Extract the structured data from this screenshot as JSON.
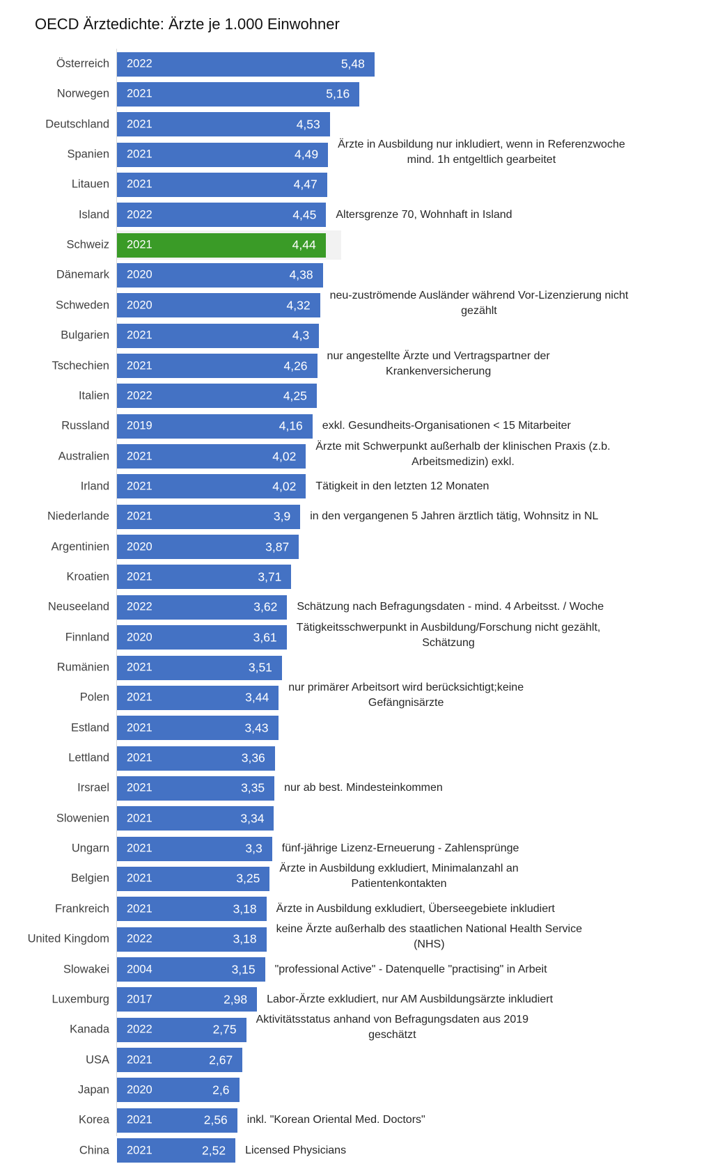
{
  "chart_data": {
    "type": "bar",
    "orientation": "horizontal",
    "title": "OECD Ärztedichte: Ärzte je 1.000 Einwohner",
    "xlim": [
      0,
      5.48
    ],
    "grid": false,
    "colors": {
      "default": "#4472C4",
      "highlight": "#3A9B27",
      "highlight_background": "#F2F2F2"
    },
    "highlight": "Schweiz",
    "rows": [
      {
        "country": "Österreich",
        "year": "2022",
        "value": 5.48,
        "label": "5,48",
        "note": ""
      },
      {
        "country": "Norwegen",
        "year": "2021",
        "value": 5.16,
        "label": "5,16",
        "note": ""
      },
      {
        "country": "Deutschland",
        "year": "2021",
        "value": 4.53,
        "label": "4,53",
        "note": ""
      },
      {
        "country": "Spanien",
        "year": "2021",
        "value": 4.49,
        "label": "4,49",
        "note": "Ärzte in Ausbildung nur inkludiert, wenn in Referenzwoche\nmind. 1h entgeltlich gearbeitet"
      },
      {
        "country": "Litauen",
        "year": "2021",
        "value": 4.47,
        "label": "4,47",
        "note": ""
      },
      {
        "country": "Island",
        "year": "2022",
        "value": 4.45,
        "label": "4,45",
        "note": "Altersgrenze 70, Wohnhaft in Island"
      },
      {
        "country": "Schweiz",
        "year": "2021",
        "value": 4.44,
        "label": "4,44",
        "note": ""
      },
      {
        "country": "Dänemark",
        "year": "2020",
        "value": 4.38,
        "label": "4,38",
        "note": ""
      },
      {
        "country": "Schweden",
        "year": "2020",
        "value": 4.32,
        "label": "4,32",
        "note": "neu-zuströmende Ausländer während Vor-Lizenzierung nicht\ngezählt"
      },
      {
        "country": "Bulgarien",
        "year": "2021",
        "value": 4.3,
        "label": "4,3",
        "note": ""
      },
      {
        "country": "Tschechien",
        "year": "2021",
        "value": 4.26,
        "label": "4,26",
        "note": "nur angestellte Ärzte und Vertragspartner der\nKrankenversicherung"
      },
      {
        "country": "Italien",
        "year": "2022",
        "value": 4.25,
        "label": "4,25",
        "note": ""
      },
      {
        "country": "Russland",
        "year": "2019",
        "value": 4.16,
        "label": "4,16",
        "note": "exkl. Gesundheits-Organisationen < 15 Mitarbeiter"
      },
      {
        "country": "Australien",
        "year": "2021",
        "value": 4.02,
        "label": "4,02",
        "note": "Ärzte mit Schwerpunkt außerhalb der klinischen Praxis (z.b.\nArbeitsmedizin) exkl."
      },
      {
        "country": "Irland",
        "year": "2021",
        "value": 4.02,
        "label": "4,02",
        "note": "Tätigkeit in den letzten 12 Monaten"
      },
      {
        "country": "Niederlande",
        "year": "2021",
        "value": 3.9,
        "label": "3,9",
        "note": "in den vergangenen 5 Jahren ärztlich tätig, Wohnsitz in NL"
      },
      {
        "country": "Argentinien",
        "year": "2020",
        "value": 3.87,
        "label": "3,87",
        "note": ""
      },
      {
        "country": "Kroatien",
        "year": "2021",
        "value": 3.71,
        "label": "3,71",
        "note": ""
      },
      {
        "country": "Neuseeland",
        "year": "2022",
        "value": 3.62,
        "label": "3,62",
        "note": "Schätzung nach Befragungsdaten - mind. 4 Arbeitsst. / Woche"
      },
      {
        "country": "Finnland",
        "year": "2020",
        "value": 3.61,
        "label": "3,61",
        "note": "Tätigkeitsschwerpunkt in Ausbildung/Forschung nicht gezählt,\nSchätzung"
      },
      {
        "country": "Rumänien",
        "year": "2021",
        "value": 3.51,
        "label": "3,51",
        "note": ""
      },
      {
        "country": "Polen",
        "year": "2021",
        "value": 3.44,
        "label": "3,44",
        "note": "nur primärer Arbeitsort wird berücksichtigt;keine\nGefängnisärzte"
      },
      {
        "country": "Estland",
        "year": "2021",
        "value": 3.43,
        "label": "3,43",
        "note": ""
      },
      {
        "country": "Lettland",
        "year": "2021",
        "value": 3.36,
        "label": "3,36",
        "note": ""
      },
      {
        "country": "Irsrael",
        "year": "2021",
        "value": 3.35,
        "label": "3,35",
        "note": "nur ab best. Mindesteinkommen"
      },
      {
        "country": "Slowenien",
        "year": "2021",
        "value": 3.34,
        "label": "3,34",
        "note": ""
      },
      {
        "country": "Ungarn",
        "year": "2021",
        "value": 3.3,
        "label": "3,3",
        "note": "fünf-jährige Lizenz-Erneuerung - Zahlensprünge"
      },
      {
        "country": "Belgien",
        "year": "2021",
        "value": 3.25,
        "label": "3,25",
        "note": "Ärzte in Ausbildung exkludiert, Minimalanzahl an\nPatientenkontakten"
      },
      {
        "country": "Frankreich",
        "year": "2021",
        "value": 3.18,
        "label": "3,18",
        "note": "Ärzte in Ausbildung exkludiert, Überseegebiete inkludiert"
      },
      {
        "country": "United Kingdom",
        "year": "2022",
        "value": 3.18,
        "label": "3,18",
        "note": "keine Ärzte außerhalb des staatlichen National Health Service\n(NHS)"
      },
      {
        "country": "Slowakei",
        "year": "2004",
        "value": 3.15,
        "label": "3,15",
        "note": "\"professional Active\" - Datenquelle \"practising\" in Arbeit"
      },
      {
        "country": "Luxemburg",
        "year": "2017",
        "value": 2.98,
        "label": "2,98",
        "note": "Labor-Ärzte exkludiert, nur AM Ausbildungsärzte inkludiert"
      },
      {
        "country": "Kanada",
        "year": "2022",
        "value": 2.75,
        "label": "2,75",
        "note": "Aktivitätsstatus anhand von Befragungsdaten aus 2019\ngeschätzt"
      },
      {
        "country": "USA",
        "year": "2021",
        "value": 2.67,
        "label": "2,67",
        "note": ""
      },
      {
        "country": "Japan",
        "year": "2020",
        "value": 2.6,
        "label": "2,6",
        "note": ""
      },
      {
        "country": "Korea",
        "year": "2021",
        "value": 2.56,
        "label": "2,56",
        "note": "inkl. \"Korean Oriental Med. Doctors\""
      },
      {
        "country": "China",
        "year": "2021",
        "value": 2.52,
        "label": "2,52",
        "note": "Licensed Physicians"
      }
    ]
  }
}
